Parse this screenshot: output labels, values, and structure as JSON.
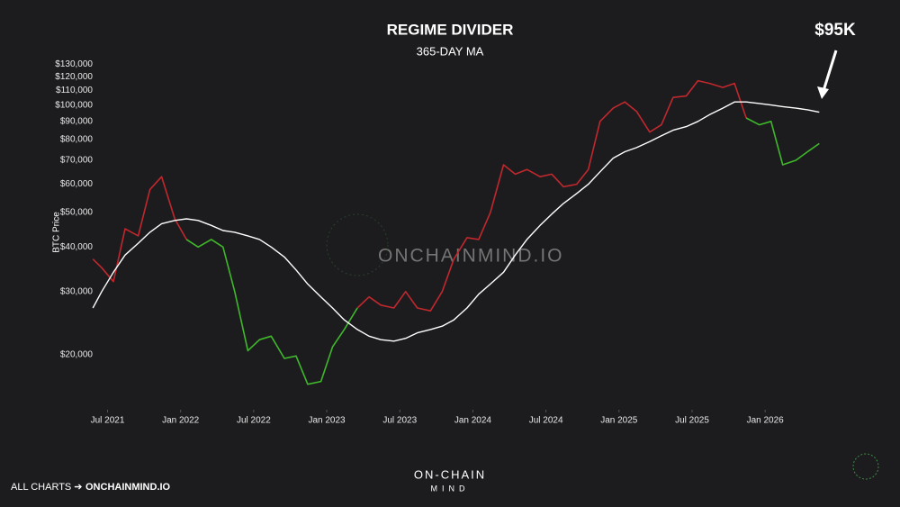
{
  "chart_data": {
    "type": "line",
    "title": "REGIME DIVIDER",
    "subtitle": "365-DAY MA",
    "annotation": "$95K",
    "y_label": "BTC Price",
    "log_y": true,
    "xlim": [
      2021.38,
      2026.43
    ],
    "ylim": [
      14000,
      135000
    ],
    "xticks": [
      {
        "value": 2021.5,
        "label": "Jul 2021"
      },
      {
        "value": 2022.0,
        "label": "Jan 2022"
      },
      {
        "value": 2022.5,
        "label": "Jul 2022"
      },
      {
        "value": 2023.0,
        "label": "Jan 2023"
      },
      {
        "value": 2023.5,
        "label": "Jul 2023"
      },
      {
        "value": 2024.0,
        "label": "Jan 2024"
      },
      {
        "value": 2024.5,
        "label": "Jul 2024"
      },
      {
        "value": 2025.0,
        "label": "Jan 2025"
      },
      {
        "value": 2025.5,
        "label": "Jul 2025"
      },
      {
        "value": 2026.0,
        "label": "Jan 2026"
      }
    ],
    "yticks": [
      {
        "value": 20000,
        "label": "$20,000"
      },
      {
        "value": 30000,
        "label": "$30,000"
      },
      {
        "value": 40000,
        "label": "$40,000"
      },
      {
        "value": 50000,
        "label": "$50,000"
      },
      {
        "value": 60000,
        "label": "$60,000"
      },
      {
        "value": 70000,
        "label": "$70,000"
      },
      {
        "value": 80000,
        "label": "$80,000"
      },
      {
        "value": 90000,
        "label": "$90,000"
      },
      {
        "value": 100000,
        "label": "$100,000"
      },
      {
        "value": 110000,
        "label": "$110,000"
      },
      {
        "value": 120000,
        "label": "$120,000"
      },
      {
        "value": 130000,
        "label": "$130,000"
      }
    ],
    "x": [
      2021.4,
      2021.46,
      2021.54,
      2021.62,
      2021.71,
      2021.79,
      2021.87,
      2021.96,
      2022.04,
      2022.12,
      2022.21,
      2022.29,
      2022.37,
      2022.46,
      2022.54,
      2022.62,
      2022.71,
      2022.79,
      2022.87,
      2022.96,
      2023.04,
      2023.12,
      2023.21,
      2023.29,
      2023.37,
      2023.46,
      2023.54,
      2023.62,
      2023.71,
      2023.79,
      2023.87,
      2023.96,
      2024.04,
      2024.12,
      2024.21,
      2024.29,
      2024.37,
      2024.46,
      2024.54,
      2024.62,
      2024.71,
      2024.79,
      2024.87,
      2024.96,
      2025.04,
      2025.12,
      2025.21,
      2025.29,
      2025.37,
      2025.46,
      2025.54,
      2025.62,
      2025.71,
      2025.79,
      2025.87,
      2025.96,
      2026.04,
      2026.12,
      2026.21,
      2026.29,
      2026.37
    ],
    "series": [
      {
        "color": "#c0282d",
        "width": 1.6,
        "values": [
          37000,
          35000,
          32000,
          45000,
          43000,
          58000,
          63000,
          48000,
          42000,
          null,
          null,
          null,
          null,
          null,
          null,
          null,
          null,
          null,
          null,
          null,
          null,
          null,
          27000,
          29000,
          27500,
          27000,
          30000,
          27000,
          26500,
          30000,
          37000,
          42500,
          42000,
          50000,
          68000,
          64000,
          66000,
          63000,
          64000,
          59000,
          60000,
          66000,
          90000,
          98000,
          102000,
          96000,
          84000,
          88000,
          105000,
          106000,
          117000,
          115000,
          112000,
          115000,
          92000,
          null,
          null,
          null,
          null,
          null,
          null
        ]
      },
      {
        "color": "#3fb82a",
        "width": 1.6,
        "values": [
          null,
          null,
          null,
          null,
          null,
          null,
          null,
          null,
          42000,
          40000,
          42000,
          40000,
          30000,
          20500,
          22000,
          22500,
          19500,
          19800,
          16500,
          16800,
          21000,
          23500,
          27000,
          null,
          null,
          null,
          null,
          null,
          null,
          null,
          null,
          null,
          null,
          null,
          null,
          null,
          null,
          null,
          null,
          null,
          null,
          null,
          null,
          null,
          null,
          null,
          null,
          null,
          null,
          null,
          null,
          null,
          null,
          null,
          92000,
          88000,
          90000,
          68000,
          70000,
          74000,
          78000
        ]
      },
      {
        "color": "#ffffff",
        "width": 1.4,
        "values": [
          27000,
          30000,
          34000,
          38000,
          41000,
          44000,
          46500,
          47500,
          48000,
          47500,
          46000,
          44500,
          44000,
          43000,
          42000,
          40000,
          37500,
          34500,
          31500,
          29000,
          27000,
          25000,
          23500,
          22500,
          22000,
          21800,
          22200,
          23000,
          23500,
          24000,
          25000,
          27000,
          29500,
          31500,
          34000,
          38000,
          42000,
          46000,
          49500,
          53000,
          56500,
          60000,
          65000,
          71000,
          74000,
          76000,
          79000,
          82000,
          85000,
          87000,
          90000,
          94000,
          98000,
          102000,
          102000,
          101000,
          100000,
          99000,
          98000,
          97000,
          95500
        ]
      }
    ]
  },
  "branding": {
    "watermark": "ONCHAINMIND.IO",
    "footer_prefix": "ALL CHARTS ➔",
    "footer_link": "ONCHAINMIND.IO",
    "logo_top": "ON-CHAIN",
    "logo_bottom": "MIND"
  }
}
